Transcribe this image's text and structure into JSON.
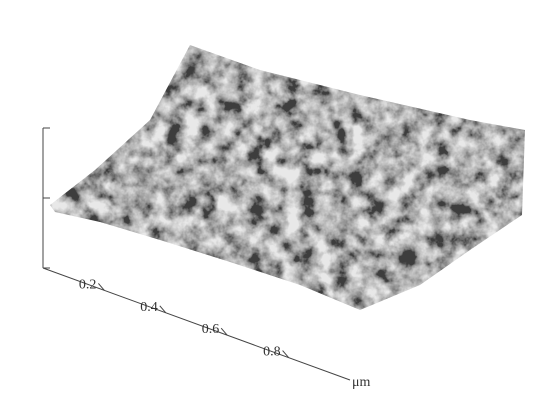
{
  "chart_data": {
    "type": "surface",
    "x_label": "μm",
    "xlim": [
      0,
      1
    ],
    "xticks": [
      0.2,
      0.4,
      0.6,
      0.8
    ]
  }
}
